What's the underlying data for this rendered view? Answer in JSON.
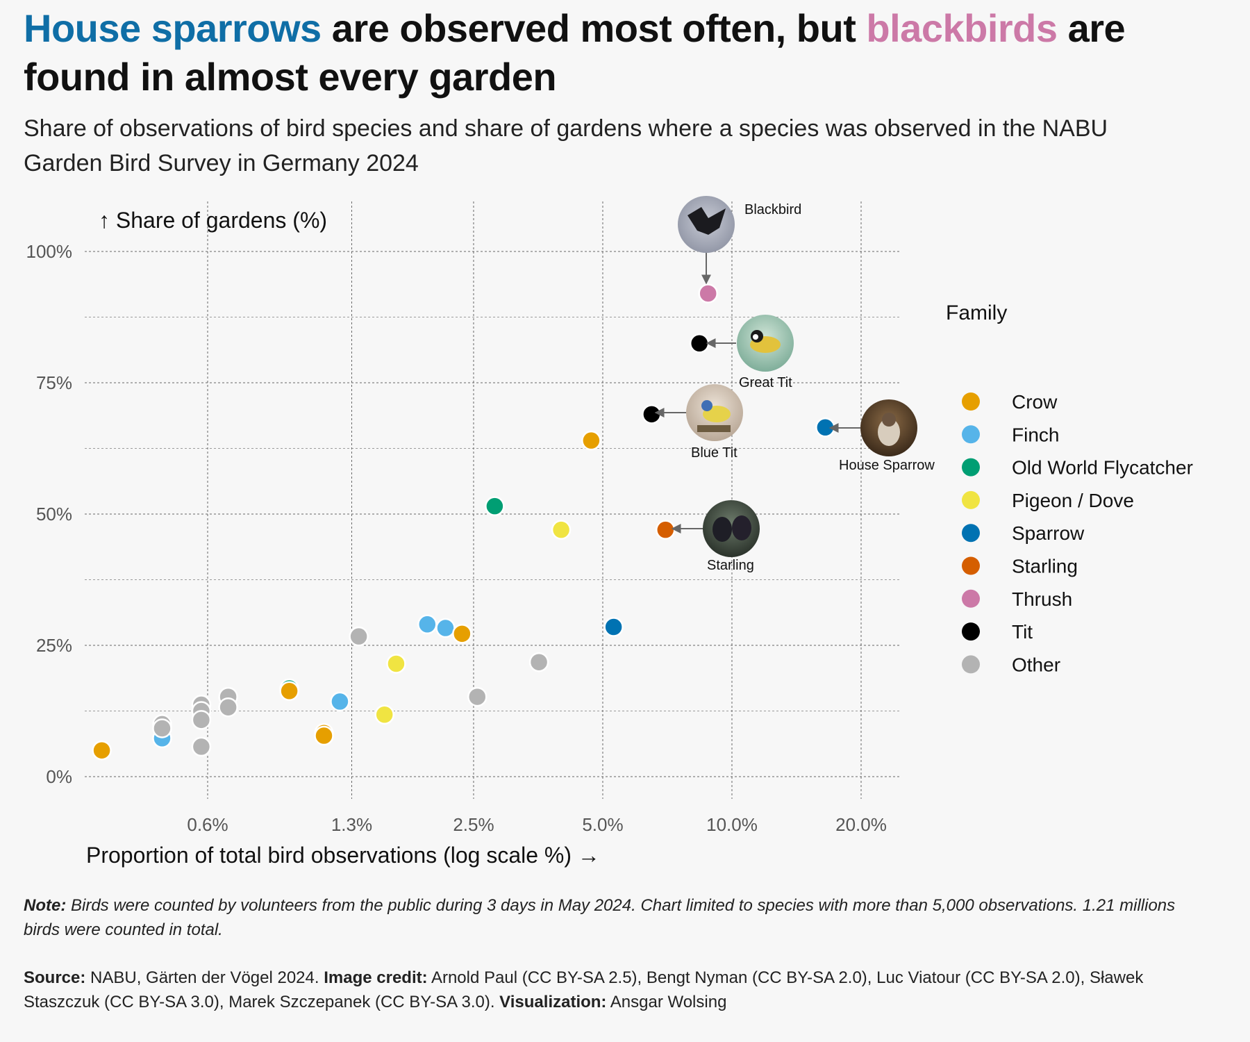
{
  "title": {
    "part1": "House sparrows",
    "part2": " are observed most often, but ",
    "part3": "blackbirds",
    "part4": " are found in almost every garden"
  },
  "subtitle": "Share of observations of bird species and share of gardens where a species was observed in the NABU Garden Bird Survey in Germany 2024",
  "colors": {
    "Crow": "#e69f00",
    "Finch": "#56b4e9",
    "Old World Flycatcher": "#009e73",
    "Pigeon / Dove": "#f0e442",
    "Sparrow": "#0072b2",
    "Starling": "#d55e00",
    "Thrush": "#cc79a7",
    "Tit": "#000000",
    "Other": "#b3b3b3"
  },
  "chart_data": {
    "type": "scatter",
    "xlabel": "Proportion of total bird observations (log scale %) →",
    "ylabel": "↑ Share of gardens (%)",
    "x_scale": "log",
    "x_ticks": [
      0.6,
      1.3,
      2.5,
      5.0,
      10.0,
      20.0
    ],
    "x_tick_labels": [
      "0.6%",
      "1.3%",
      "2.5%",
      "5.0%",
      "10.0%",
      "20.0%"
    ],
    "y_ticks": [
      0,
      25,
      50,
      75,
      100
    ],
    "y_tick_labels": [
      "0%",
      "25%",
      "50%",
      "75%",
      "100%"
    ],
    "xlim": [
      0.24,
      25
    ],
    "ylim": [
      0,
      100
    ],
    "legend_title": "Family",
    "legend_entries": [
      "Crow",
      "Finch",
      "Old World Flycatcher",
      "Pigeon / Dove",
      "Sparrow",
      "Starling",
      "Thrush",
      "Tit",
      "Other"
    ],
    "legend_position": "right",
    "grid": true,
    "points": [
      {
        "family": "Thrush",
        "x": 8.8,
        "y": 92,
        "label": "Blackbird"
      },
      {
        "family": "Tit",
        "x": 8.4,
        "y": 82.5,
        "label": "Great Tit"
      },
      {
        "family": "Tit",
        "x": 6.5,
        "y": 69,
        "label": "Blue Tit"
      },
      {
        "family": "Sparrow",
        "x": 16.5,
        "y": 66.5,
        "label": "House Sparrow"
      },
      {
        "family": "Starling",
        "x": 7.0,
        "y": 47,
        "label": "Starling"
      },
      {
        "family": "Crow",
        "x": 4.7,
        "y": 64
      },
      {
        "family": "Old World Flycatcher",
        "x": 2.8,
        "y": 51.5
      },
      {
        "family": "Pigeon / Dove",
        "x": 4.0,
        "y": 47
      },
      {
        "family": "Sparrow",
        "x": 5.3,
        "y": 28.5
      },
      {
        "family": "Finch",
        "x": 1.95,
        "y": 29
      },
      {
        "family": "Finch",
        "x": 2.15,
        "y": 28.3
      },
      {
        "family": "Crow",
        "x": 2.35,
        "y": 27.2
      },
      {
        "family": "Other",
        "x": 1.35,
        "y": 26.7
      },
      {
        "family": "Pigeon / Dove",
        "x": 1.65,
        "y": 21.5
      },
      {
        "family": "Other",
        "x": 3.55,
        "y": 21.8
      },
      {
        "family": "Other",
        "x": 2.55,
        "y": 15.2
      },
      {
        "family": "Finch",
        "x": 1.22,
        "y": 14.3
      },
      {
        "family": "Pigeon / Dove",
        "x": 1.55,
        "y": 11.8
      },
      {
        "family": "Old World Flycatcher",
        "x": 0.93,
        "y": 16.8
      },
      {
        "family": "Crow",
        "x": 0.93,
        "y": 16.3
      },
      {
        "family": "Crow",
        "x": 1.12,
        "y": 8.3
      },
      {
        "family": "Crow",
        "x": 1.12,
        "y": 7.8
      },
      {
        "family": "Other",
        "x": 0.67,
        "y": 15.2
      },
      {
        "family": "Other",
        "x": 0.67,
        "y": 13.2
      },
      {
        "family": "Other",
        "x": 0.58,
        "y": 13.7
      },
      {
        "family": "Other",
        "x": 0.58,
        "y": 12.5
      },
      {
        "family": "Other",
        "x": 0.58,
        "y": 10.8
      },
      {
        "family": "Other",
        "x": 0.58,
        "y": 5.7
      },
      {
        "family": "Finch",
        "x": 0.47,
        "y": 7.3
      },
      {
        "family": "Other",
        "x": 0.47,
        "y": 10.0
      },
      {
        "family": "Other",
        "x": 0.47,
        "y": 9.2
      },
      {
        "family": "Crow",
        "x": 0.34,
        "y": 5.0
      }
    ]
  },
  "note": {
    "label": "Note:",
    "text": " Birds were counted by volunteers from the public during 3 days in May 2024. Chart limited to species with more than 5,000 observations. 1.21 millions birds were counted in total."
  },
  "source": {
    "label": "Source:",
    "text": " NABU, Gärten der Vögel 2024. ",
    "credit_label": "Image credit:",
    "credit_text": " Arnold Paul (CC BY-SA 2.5), Bengt Nyman (CC BY-SA 2.0), Luc Viatour (CC BY-SA 2.0), Sławek Staszczuk (CC BY-SA 3.0), Marek Szczepanek (CC BY-SA 3.0). ",
    "viz_label": "Visualization:",
    "viz_text": " Ansgar Wolsing"
  }
}
